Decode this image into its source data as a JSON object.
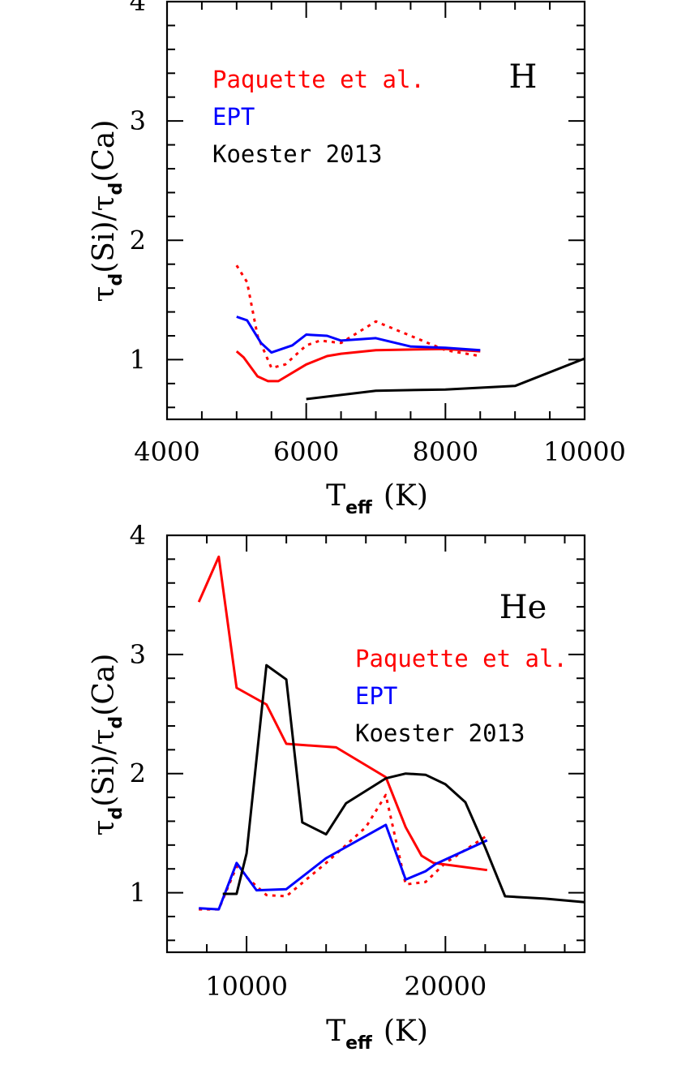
{
  "chart_data": [
    {
      "type": "line",
      "panel_tag": "H",
      "xlabel_main": "T",
      "xlabel_sub": "eff",
      "xlabel_unit": "(K)",
      "ylabel_parts": [
        "τ",
        "d",
        "(Si)/",
        "τ",
        "d",
        "(Ca)"
      ],
      "xlim": [
        4000,
        10000
      ],
      "ylim": [
        0.5,
        4
      ],
      "x_major_ticks": [
        4000,
        6000,
        8000,
        10000
      ],
      "x_tick_labels": [
        "4000",
        "6000",
        "8000",
        "10000"
      ],
      "x_minor_step": 500,
      "y_major_ticks": [
        1,
        2,
        3,
        4
      ],
      "y_tick_labels": [
        "1",
        "2",
        "3",
        "4"
      ],
      "y_minor_step": 0.2,
      "legend": [
        {
          "label": "Paquette et al.",
          "color": "#ff0000"
        },
        {
          "label": "EPT",
          "color": "#0000ff"
        },
        {
          "label": "Koester 2013",
          "color": "#000000"
        }
      ],
      "series": [
        {
          "color": "#ff0000",
          "dash": false,
          "x": [
            5000,
            5100,
            5300,
            5450,
            5600,
            6000,
            6300,
            6500,
            7000,
            8000,
            8500
          ],
          "y": [
            1.07,
            1.02,
            0.86,
            0.82,
            0.82,
            0.96,
            1.03,
            1.05,
            1.08,
            1.09,
            1.07
          ]
        },
        {
          "color": "#ff0000",
          "dash": true,
          "x": [
            5000,
            5150,
            5300,
            5500,
            5700,
            6000,
            6200,
            6500,
            7000,
            7500,
            8000,
            8500
          ],
          "y": [
            1.79,
            1.65,
            1.2,
            0.93,
            0.96,
            1.12,
            1.16,
            1.14,
            1.32,
            1.2,
            1.08,
            1.03
          ]
        },
        {
          "color": "#0000ff",
          "dash": false,
          "x": [
            5000,
            5150,
            5350,
            5500,
            5800,
            6000,
            6300,
            6500,
            7000,
            7500,
            8000,
            8500
          ],
          "y": [
            1.36,
            1.33,
            1.14,
            1.06,
            1.12,
            1.21,
            1.2,
            1.16,
            1.18,
            1.11,
            1.1,
            1.08
          ]
        },
        {
          "color": "#000000",
          "dash": false,
          "x": [
            6000,
            7000,
            8000,
            9000,
            10000
          ],
          "y": [
            0.67,
            0.74,
            0.75,
            0.78,
            1.01
          ]
        }
      ]
    },
    {
      "type": "line",
      "panel_tag": "He",
      "xlabel_main": "T",
      "xlabel_sub": "eff",
      "xlabel_unit": "(K)",
      "ylabel_parts": [
        "τ",
        "d",
        "(Si)/",
        "τ",
        "d",
        "(Ca)"
      ],
      "xlim": [
        6000,
        27000
      ],
      "ylim": [
        0.5,
        4
      ],
      "x_major_ticks": [
        10000,
        20000
      ],
      "x_tick_labels": [
        "10000",
        "20000"
      ],
      "x_minor_step": 2000,
      "y_major_ticks": [
        1,
        2,
        3,
        4
      ],
      "y_tick_labels": [
        "1",
        "2",
        "3",
        "4"
      ],
      "y_minor_step": 0.2,
      "legend": [
        {
          "label": "Paquette et al.",
          "color": "#ff0000"
        },
        {
          "label": "EPT",
          "color": "#0000ff"
        },
        {
          "label": "Koester 2013",
          "color": "#000000"
        }
      ],
      "series": [
        {
          "color": "#ff0000",
          "dash": false,
          "x": [
            7600,
            8600,
            9500,
            11000,
            12000,
            14500,
            17000,
            18000,
            18800,
            19400,
            22100
          ],
          "y": [
            3.44,
            3.82,
            2.72,
            2.58,
            2.25,
            2.22,
            1.97,
            1.55,
            1.31,
            1.25,
            1.19
          ]
        },
        {
          "color": "#ff0000",
          "dash": true,
          "x": [
            7600,
            8600,
            9500,
            10000,
            11000,
            12000,
            14000,
            16000,
            17000,
            18000,
            19000,
            20000,
            22100
          ],
          "y": [
            0.86,
            0.86,
            1.22,
            1.13,
            0.98,
            0.97,
            1.25,
            1.55,
            1.82,
            1.07,
            1.09,
            1.25,
            1.48
          ]
        },
        {
          "color": "#0000ff",
          "dash": false,
          "x": [
            7600,
            8600,
            9500,
            10500,
            12000,
            14000,
            17000,
            18000,
            19000,
            19500,
            22100
          ],
          "y": [
            0.87,
            0.86,
            1.25,
            1.02,
            1.03,
            1.29,
            1.57,
            1.11,
            1.18,
            1.24,
            1.44
          ]
        },
        {
          "color": "#000000",
          "dash": false,
          "x": [
            8800,
            9500,
            10000,
            11000,
            12000,
            12800,
            14000,
            15000,
            17000,
            18000,
            19000,
            20000,
            21000,
            22000,
            23000,
            25000,
            27000
          ],
          "y": [
            0.99,
            0.99,
            1.33,
            2.91,
            2.79,
            1.59,
            1.49,
            1.75,
            1.96,
            2.0,
            1.99,
            1.91,
            1.76,
            1.38,
            0.97,
            0.95,
            0.92
          ]
        }
      ]
    }
  ]
}
